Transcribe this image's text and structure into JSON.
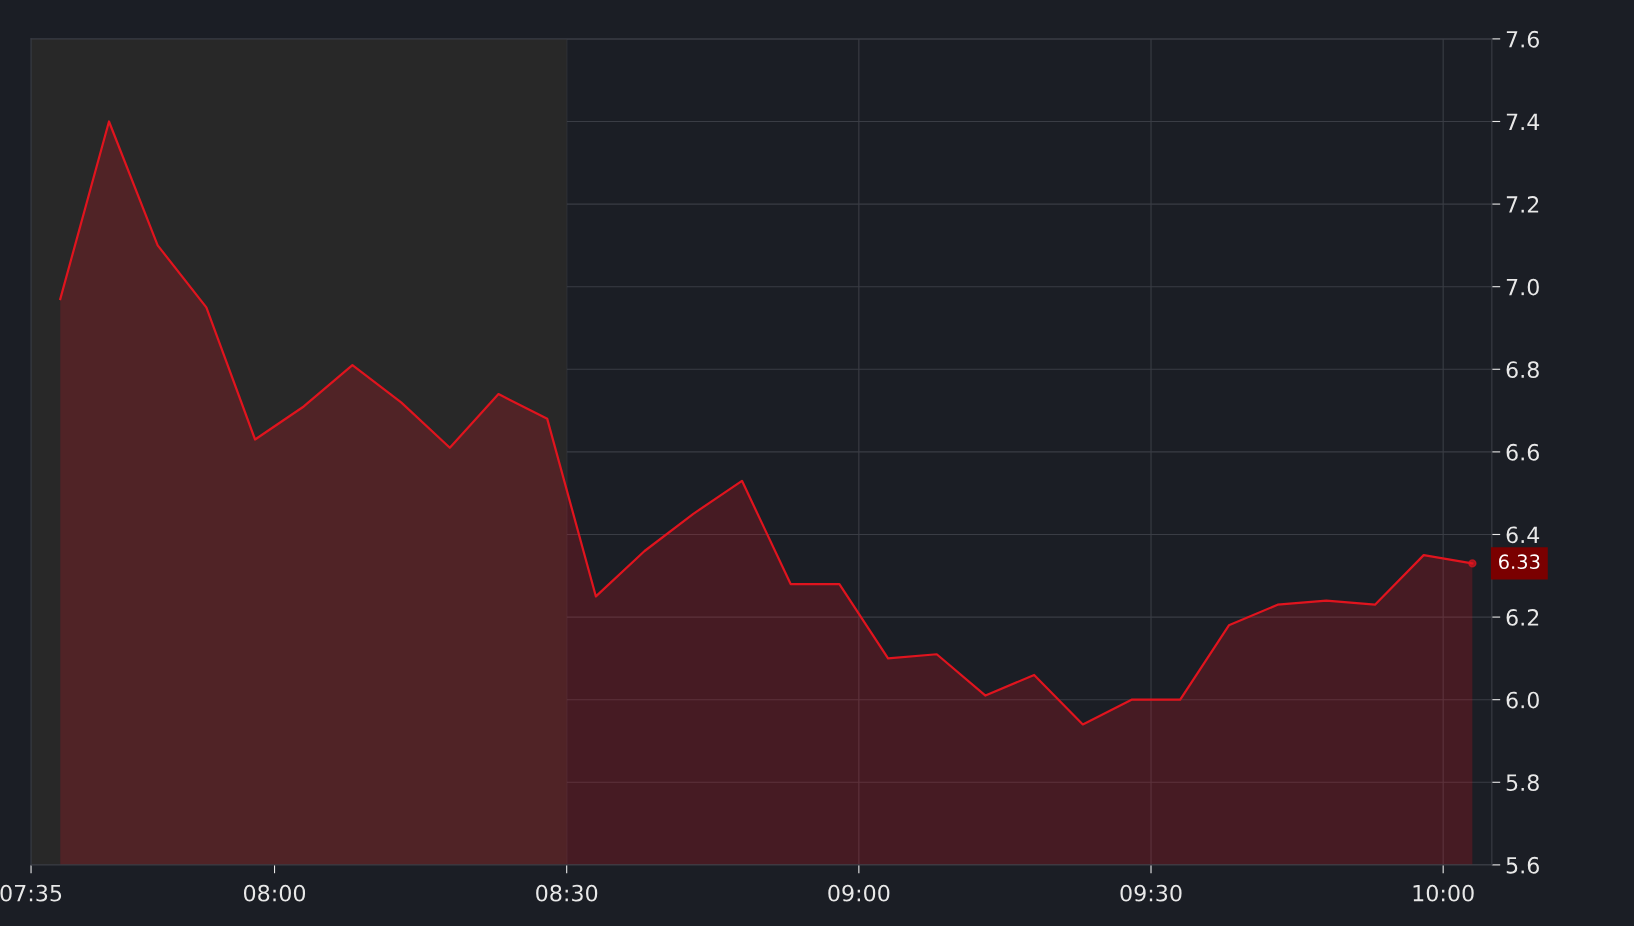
{
  "chart_data": {
    "type": "area",
    "x": [
      7.6333,
      7.7167,
      7.8,
      7.8833,
      7.9667,
      8.05,
      8.1333,
      8.2167,
      8.3,
      8.3833,
      8.4667,
      8.55,
      8.6333,
      8.7167,
      8.8,
      8.8833,
      8.9667,
      9.05,
      9.1333,
      9.2167,
      9.3,
      9.3833,
      9.4667,
      9.55,
      9.6333,
      9.7167,
      9.8,
      9.8833,
      9.9667,
      10.05
    ],
    "series": [
      {
        "color": "#e0141e",
        "values": [
          6.97,
          7.4,
          7.1,
          6.95,
          6.63,
          6.71,
          6.81,
          6.72,
          6.61,
          6.74,
          6.68,
          6.25,
          6.36,
          6.45,
          6.53,
          6.28,
          6.28,
          6.1,
          6.11,
          6.01,
          6.06,
          5.94,
          6.0,
          6.0,
          6.18,
          6.23,
          6.24,
          6.23,
          6.35,
          6.33
        ]
      }
    ],
    "xlim": [
      7.5833,
      10.0833
    ],
    "xticks": [
      {
        "value": 7.5833,
        "label": "07:35"
      },
      {
        "value": 8,
        "label": "08:00"
      },
      {
        "value": 8.5,
        "label": "08:30"
      },
      {
        "value": 9,
        "label": "09:00"
      },
      {
        "value": 9.5,
        "label": "09:30"
      },
      {
        "value": 10,
        "label": "10:00"
      }
    ],
    "ylim": [
      5.6,
      7.6
    ],
    "yticks": [
      5.6,
      5.8,
      {
        "value": 6.0,
        "label": "6.0"
      },
      6.2,
      6.4,
      6.6,
      6.8,
      {
        "value": 7.0,
        "label": "7.0"
      },
      7.2,
      7.4,
      7.6
    ],
    "bands": [
      {
        "axis": "x",
        "from": 7.5833,
        "to": 8.5,
        "color": "#282828"
      }
    ],
    "annotations": [
      {
        "text": "6.33",
        "x": 10.05,
        "y": 6.33
      }
    ],
    "grid": true
  }
}
